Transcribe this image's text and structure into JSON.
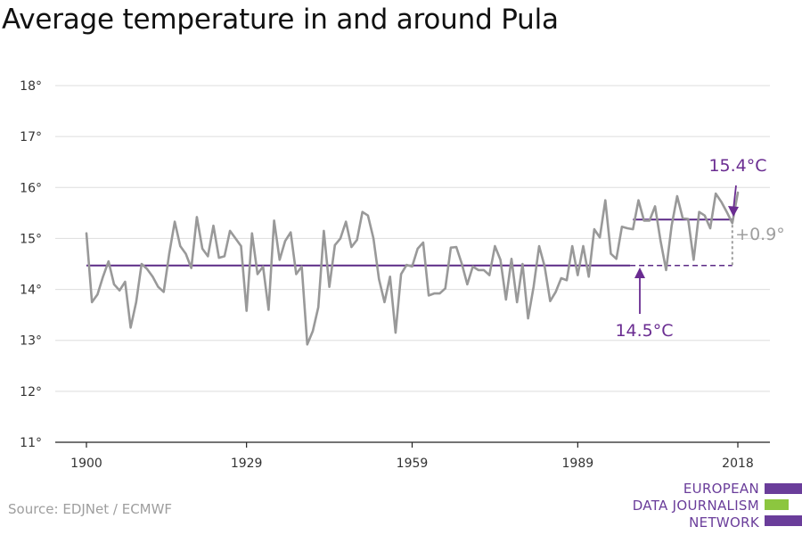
{
  "title": "Average temperature in and around Pula",
  "source": "Source: EDJNet / ECMWF",
  "logo": {
    "lines": [
      "EUROPEAN",
      "DATA JOURNALISM",
      "NETWORK"
    ],
    "colors": {
      "purple": "#6a3d9a",
      "green": "#8cc63f"
    }
  },
  "colors": {
    "series": "#999999",
    "average": "#5b2a86",
    "annotation": "#6a2c91",
    "delta": "#9e9e9e",
    "grid": "#dddddd",
    "axis": "#222222"
  },
  "chart_data": {
    "type": "line",
    "title": "Average temperature in and around Pula",
    "xlim": [
      1900,
      2018
    ],
    "ylim": [
      11,
      18
    ],
    "x_ticks": [
      1900,
      1929,
      1959,
      1989,
      2018
    ],
    "y_ticks": [
      11,
      12,
      13,
      14,
      15,
      16,
      17,
      18
    ],
    "y_tick_labels": [
      "11°",
      "12°",
      "13°",
      "14°",
      "15°",
      "16°",
      "17°",
      "18°"
    ],
    "x_tick_labels": [
      "1900",
      "1929",
      "1959",
      "1989",
      "2018"
    ],
    "grid": true,
    "series": [
      {
        "x": [
          1900,
          1901,
          1902,
          1903,
          1904,
          1905,
          1906,
          1907,
          1908,
          1909,
          1910,
          1911,
          1912,
          1913,
          1914,
          1915,
          1916,
          1917,
          1918,
          1919,
          1920,
          1921,
          1922,
          1923,
          1924,
          1925,
          1926,
          1927,
          1928,
          1929,
          1930,
          1931,
          1932,
          1933,
          1934,
          1935,
          1936,
          1937,
          1938,
          1939,
          1940,
          1941,
          1942,
          1943,
          1944,
          1945,
          1946,
          1947,
          1948,
          1949,
          1950,
          1951,
          1952,
          1953,
          1954,
          1955,
          1956,
          1957,
          1958,
          1959,
          1960,
          1961,
          1962,
          1963,
          1964,
          1965,
          1966,
          1967,
          1968,
          1969,
          1970,
          1971,
          1972,
          1973,
          1974,
          1975,
          1976,
          1977,
          1978,
          1979,
          1980,
          1981,
          1982,
          1983,
          1984,
          1985,
          1986,
          1987,
          1988,
          1989,
          1990,
          1991,
          1992,
          1993,
          1994,
          1995,
          1996,
          1997,
          1998,
          1999,
          2000,
          2001,
          2002,
          2003,
          2004,
          2005,
          2006,
          2007,
          2008,
          2009,
          2010,
          2011,
          2012,
          2013,
          2014,
          2015,
          2016,
          2017,
          2018
        ],
        "values": [
          15.1,
          13.75,
          13.9,
          14.25,
          14.55,
          14.1,
          13.98,
          14.15,
          13.25,
          13.75,
          14.5,
          14.4,
          14.25,
          14.05,
          13.95,
          14.7,
          15.33,
          14.85,
          14.7,
          14.42,
          15.42,
          14.8,
          14.65,
          15.25,
          14.62,
          14.65,
          15.15,
          15.0,
          14.85,
          13.58,
          15.1,
          14.3,
          14.45,
          13.6,
          15.35,
          14.58,
          14.95,
          15.12,
          14.3,
          14.45,
          12.92,
          13.18,
          13.65,
          15.15,
          14.05,
          14.87,
          15.0,
          15.33,
          14.83,
          14.97,
          15.52,
          15.45,
          15.0,
          14.2,
          13.75,
          14.25,
          13.15,
          14.3,
          14.48,
          14.45,
          14.8,
          14.92,
          13.88,
          13.92,
          13.92,
          14.02,
          14.82,
          14.83,
          14.5,
          14.1,
          14.45,
          14.38,
          14.38,
          14.28,
          14.85,
          14.58,
          13.8,
          14.6,
          13.75,
          14.5,
          13.43,
          14.05,
          14.85,
          14.45,
          13.77,
          13.95,
          14.22,
          14.18,
          14.85,
          14.28,
          14.85,
          14.25,
          15.18,
          15.02,
          15.75,
          14.7,
          14.6,
          15.23,
          15.2,
          15.18,
          15.75,
          15.35,
          15.35,
          15.63,
          14.95,
          14.38,
          15.25,
          15.83,
          15.4,
          15.38,
          14.58,
          15.52,
          15.45,
          15.2,
          15.88,
          15.72,
          15.52,
          15.3,
          15.9
        ]
      }
    ],
    "averages": [
      {
        "label": "14.5°C",
        "value": 14.47,
        "x_from": 1900,
        "x_to": 1998,
        "dashed_to": 2017
      },
      {
        "label": "15.4°C",
        "value": 15.37,
        "x_from": 1999,
        "x_to": 2017
      }
    ],
    "delta_label": "+0.9°"
  }
}
